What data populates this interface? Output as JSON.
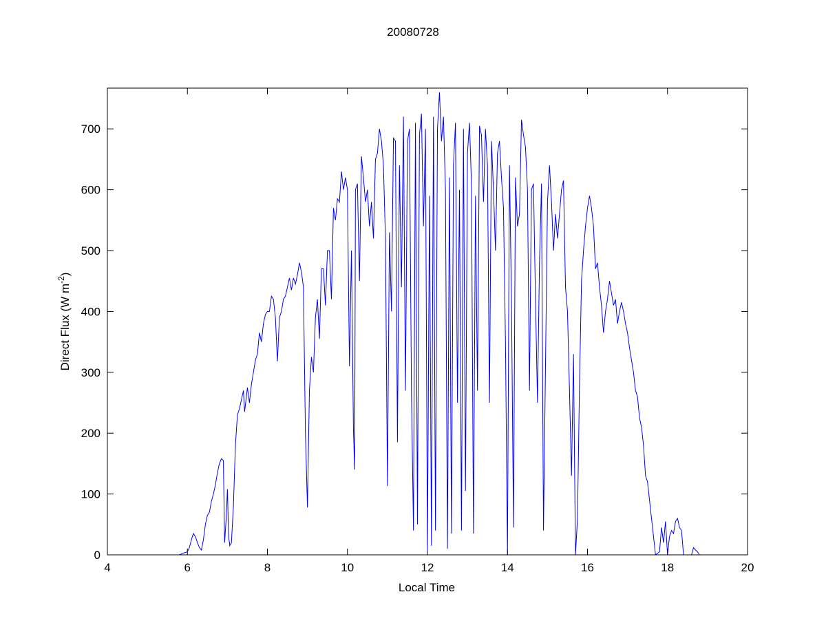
{
  "chart_data": {
    "type": "line",
    "title": "20080728",
    "xlabel": "Local Time",
    "ylabel": [
      "Direct Flux (W m",
      "-2",
      ")"
    ],
    "color": "#0000ff",
    "xlim": [
      4,
      20
    ],
    "ylim": [
      0,
      767
    ],
    "xticks": [
      4,
      6,
      8,
      10,
      12,
      14,
      16,
      18,
      20
    ],
    "yticks": [
      0,
      100,
      200,
      300,
      400,
      500,
      600,
      700
    ],
    "grid": false,
    "x": [
      4.0,
      5.0,
      5.8,
      5.9,
      6.0,
      6.05,
      6.1,
      6.15,
      6.2,
      6.25,
      6.3,
      6.35,
      6.4,
      6.45,
      6.5,
      6.55,
      6.6,
      6.65,
      6.7,
      6.75,
      6.8,
      6.85,
      6.9,
      6.93,
      6.97,
      7.0,
      7.03,
      7.06,
      7.1,
      7.15,
      7.2,
      7.25,
      7.3,
      7.35,
      7.4,
      7.43,
      7.5,
      7.55,
      7.6,
      7.65,
      7.7,
      7.75,
      7.8,
      7.85,
      7.9,
      7.95,
      8.0,
      8.05,
      8.1,
      8.15,
      8.2,
      8.25,
      8.3,
      8.35,
      8.4,
      8.45,
      8.5,
      8.55,
      8.6,
      8.65,
      8.7,
      8.75,
      8.8,
      8.85,
      8.9,
      8.95,
      9.0,
      9.05,
      9.1,
      9.15,
      9.2,
      9.25,
      9.3,
      9.35,
      9.4,
      9.45,
      9.5,
      9.55,
      9.6,
      9.65,
      9.7,
      9.75,
      9.8,
      9.85,
      9.9,
      9.95,
      10.0,
      10.05,
      10.1,
      10.15,
      10.18,
      10.2,
      10.25,
      10.3,
      10.35,
      10.4,
      10.45,
      10.5,
      10.55,
      10.6,
      10.65,
      10.7,
      10.75,
      10.8,
      10.85,
      10.9,
      10.95,
      11.0,
      11.05,
      11.1,
      11.15,
      11.2,
      11.25,
      11.3,
      11.35,
      11.4,
      11.45,
      11.5,
      11.55,
      11.6,
      11.65,
      11.7,
      11.75,
      11.8,
      11.85,
      11.9,
      11.95,
      12.0,
      12.05,
      12.1,
      12.15,
      12.2,
      12.25,
      12.3,
      12.35,
      12.4,
      12.45,
      12.5,
      12.55,
      12.6,
      12.65,
      12.7,
      12.75,
      12.8,
      12.85,
      12.9,
      12.95,
      13.0,
      13.05,
      13.1,
      13.15,
      13.2,
      13.25,
      13.3,
      13.35,
      13.4,
      13.45,
      13.5,
      13.55,
      13.6,
      13.65,
      13.7,
      13.75,
      13.8,
      13.85,
      13.9,
      13.95,
      14.0,
      14.05,
      14.1,
      14.15,
      14.2,
      14.25,
      14.3,
      14.35,
      14.4,
      14.45,
      14.5,
      14.55,
      14.6,
      14.65,
      14.7,
      14.75,
      14.8,
      14.85,
      14.9,
      14.95,
      15.0,
      15.05,
      15.1,
      15.15,
      15.2,
      15.25,
      15.3,
      15.35,
      15.4,
      15.45,
      15.5,
      15.55,
      15.6,
      15.65,
      15.7,
      15.75,
      15.8,
      15.85,
      15.9,
      15.95,
      16.0,
      16.05,
      16.1,
      16.15,
      16.2,
      16.25,
      16.3,
      16.35,
      16.4,
      16.45,
      16.5,
      16.55,
      16.6,
      16.65,
      16.7,
      16.75,
      16.8,
      16.85,
      16.9,
      16.95,
      17.0,
      17.05,
      17.1,
      17.15,
      17.2,
      17.25,
      17.3,
      17.35,
      17.4,
      17.45,
      17.5,
      17.55,
      17.6,
      17.65,
      17.7,
      17.8,
      17.85,
      17.9,
      17.95,
      18.0,
      18.05,
      18.1,
      18.15,
      18.2,
      18.25,
      18.3,
      18.35,
      18.4,
      18.6,
      18.65,
      18.7,
      18.75,
      18.8,
      19.9
    ],
    "values": [
      0,
      0,
      0,
      3,
      5,
      12,
      25,
      35,
      30,
      20,
      12,
      8,
      25,
      50,
      65,
      70,
      88,
      100,
      115,
      135,
      150,
      158,
      155,
      20,
      60,
      108,
      30,
      15,
      20,
      80,
      180,
      230,
      240,
      255,
      270,
      235,
      275,
      250,
      280,
      300,
      320,
      330,
      365,
      350,
      380,
      395,
      400,
      400,
      425,
      420,
      390,
      318,
      390,
      400,
      420,
      425,
      440,
      455,
      435,
      455,
      445,
      460,
      480,
      465,
      440,
      200,
      78,
      270,
      325,
      300,
      390,
      420,
      355,
      470,
      470,
      410,
      500,
      500,
      420,
      570,
      550,
      585,
      580,
      630,
      600,
      620,
      600,
      310,
      500,
      205,
      140,
      600,
      610,
      450,
      655,
      620,
      580,
      600,
      540,
      580,
      520,
      650,
      660,
      700,
      680,
      640,
      520,
      113,
      530,
      400,
      685,
      680,
      185,
      640,
      440,
      720,
      270,
      680,
      700,
      270,
      40,
      710,
      50,
      690,
      725,
      540,
      700,
      5,
      590,
      15,
      720,
      40,
      700,
      760,
      680,
      720,
      600,
      10,
      620,
      35,
      640,
      710,
      250,
      600,
      40,
      700,
      105,
      660,
      710,
      610,
      35,
      590,
      270,
      705,
      690,
      580,
      700,
      640,
      250,
      680,
      600,
      500,
      660,
      680,
      620,
      570,
      350,
      0,
      640,
      420,
      45,
      620,
      540,
      560,
      715,
      690,
      670,
      600,
      270,
      600,
      610,
      420,
      250,
      480,
      610,
      40,
      310,
      580,
      640,
      580,
      500,
      560,
      520,
      560,
      600,
      615,
      440,
      400,
      270,
      130,
      330,
      0,
      60,
      280,
      450,
      500,
      540,
      570,
      590,
      570,
      540,
      470,
      480,
      440,
      410,
      365,
      400,
      420,
      450,
      430,
      410,
      420,
      380,
      400,
      415,
      400,
      380,
      365,
      340,
      320,
      300,
      270,
      260,
      225,
      210,
      180,
      130,
      120,
      90,
      60,
      30,
      0,
      5,
      45,
      20,
      55,
      0,
      30,
      40,
      35,
      55,
      60,
      45,
      40,
      0,
      0,
      12,
      8,
      5,
      0,
      0
    ]
  }
}
